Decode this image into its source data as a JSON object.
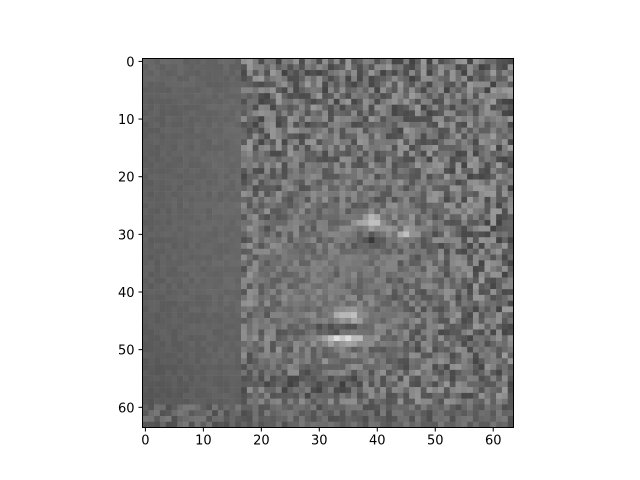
{
  "chart_data": {
    "type": "heatmap",
    "content": "noisy grayscale face image",
    "colormap": "gray",
    "grid": false,
    "x_range": [
      -0.5,
      63.5
    ],
    "y_range": [
      -0.5,
      63.5
    ],
    "y_axis_inverted": true,
    "x_ticks": [
      {
        "value": 0,
        "label": "0"
      },
      {
        "value": 10,
        "label": "10"
      },
      {
        "value": 20,
        "label": "20"
      },
      {
        "value": 30,
        "label": "30"
      },
      {
        "value": 40,
        "label": "40"
      },
      {
        "value": 50,
        "label": "50"
      },
      {
        "value": 60,
        "label": "60"
      }
    ],
    "y_ticks": [
      {
        "value": 0,
        "label": "0"
      },
      {
        "value": 10,
        "label": "10"
      },
      {
        "value": 20,
        "label": "20"
      },
      {
        "value": 30,
        "label": "30"
      },
      {
        "value": 40,
        "label": "40"
      },
      {
        "value": 50,
        "label": "50"
      },
      {
        "value": 60,
        "label": "60"
      }
    ],
    "title": "",
    "xlabel": "",
    "ylabel": ""
  }
}
